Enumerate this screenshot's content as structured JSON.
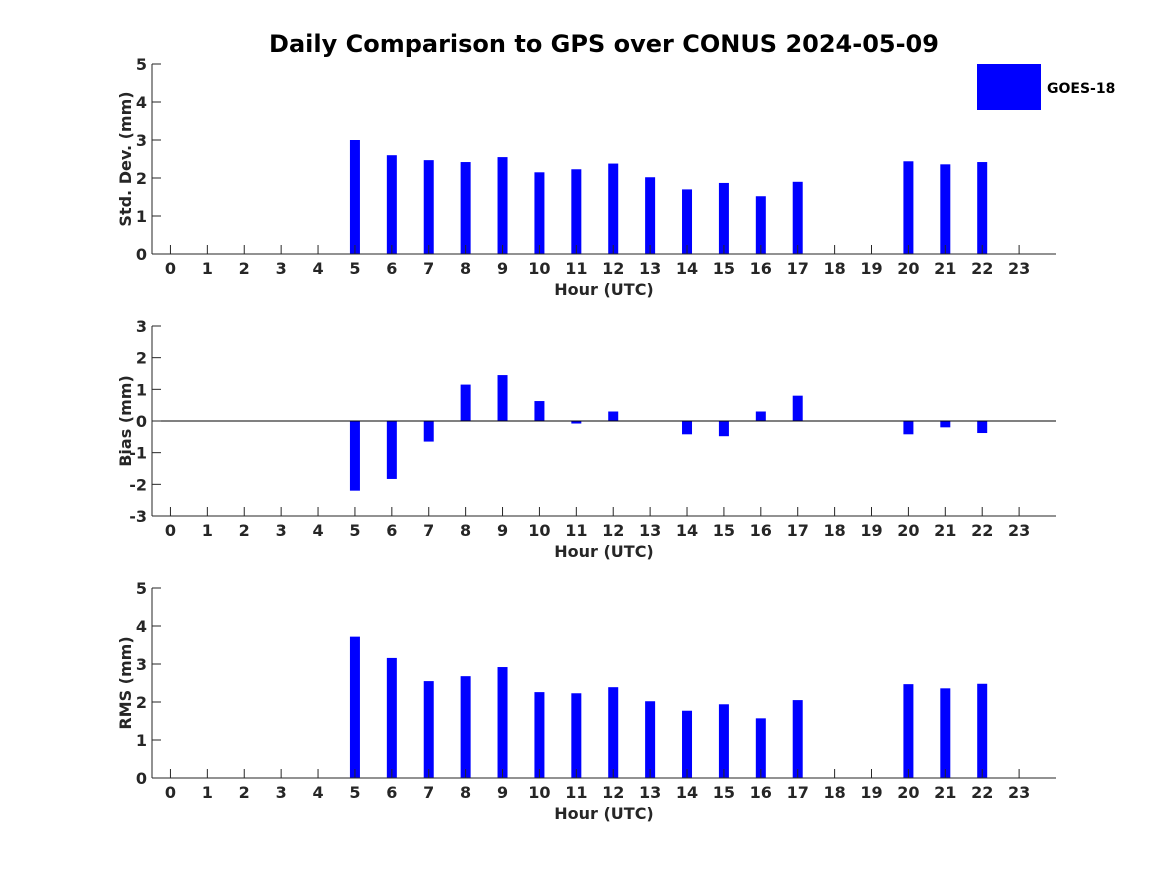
{
  "title": "Daily Comparison to GPS over CONUS 2024-05-09",
  "legend": {
    "label": "GOES-18",
    "color": "#0000ff"
  },
  "chart_data": [
    {
      "type": "bar",
      "id": "std",
      "ylabel": "Std. Dev. (mm)",
      "xlabel": "Hour (UTC)",
      "ylim": [
        0,
        5
      ],
      "yticks": [
        0,
        1,
        2,
        3,
        4,
        5
      ],
      "categories": [
        "0",
        "1",
        "2",
        "3",
        "4",
        "5",
        "6",
        "7",
        "8",
        "9",
        "10",
        "11",
        "12",
        "13",
        "14",
        "15",
        "16",
        "17",
        "18",
        "19",
        "20",
        "21",
        "22",
        "23"
      ],
      "series": [
        {
          "name": "GOES-18",
          "values": [
            null,
            null,
            null,
            null,
            null,
            3.0,
            2.6,
            2.47,
            2.42,
            2.55,
            2.15,
            2.23,
            2.38,
            2.02,
            1.7,
            1.87,
            1.52,
            1.9,
            null,
            null,
            2.44,
            2.36,
            2.42,
            null
          ]
        }
      ]
    },
    {
      "type": "bar",
      "id": "bias",
      "ylabel": "Bias (mm)",
      "xlabel": "Hour (UTC)",
      "ylim": [
        -3,
        3
      ],
      "yticks": [
        -3,
        -2,
        -1,
        0,
        1,
        2,
        3
      ],
      "categories": [
        "0",
        "1",
        "2",
        "3",
        "4",
        "5",
        "6",
        "7",
        "8",
        "9",
        "10",
        "11",
        "12",
        "13",
        "14",
        "15",
        "16",
        "17",
        "18",
        "19",
        "20",
        "21",
        "22",
        "23"
      ],
      "series": [
        {
          "name": "GOES-18",
          "values": [
            null,
            null,
            null,
            null,
            null,
            -2.2,
            -1.83,
            -0.65,
            1.15,
            1.45,
            0.63,
            -0.08,
            0.3,
            null,
            -0.42,
            -0.48,
            0.3,
            0.8,
            null,
            null,
            -0.42,
            -0.2,
            -0.38,
            null
          ]
        }
      ]
    },
    {
      "type": "bar",
      "id": "rms",
      "ylabel": "RMS (mm)",
      "xlabel": "Hour (UTC)",
      "ylim": [
        0,
        5
      ],
      "yticks": [
        0,
        1,
        2,
        3,
        4,
        5
      ],
      "categories": [
        "0",
        "1",
        "2",
        "3",
        "4",
        "5",
        "6",
        "7",
        "8",
        "9",
        "10",
        "11",
        "12",
        "13",
        "14",
        "15",
        "16",
        "17",
        "18",
        "19",
        "20",
        "21",
        "22",
        "23"
      ],
      "series": [
        {
          "name": "GOES-18",
          "values": [
            null,
            null,
            null,
            null,
            null,
            3.72,
            3.16,
            2.55,
            2.68,
            2.92,
            2.26,
            2.23,
            2.39,
            2.02,
            1.77,
            1.94,
            1.57,
            2.05,
            null,
            null,
            2.47,
            2.36,
            2.48,
            null
          ]
        }
      ]
    }
  ]
}
